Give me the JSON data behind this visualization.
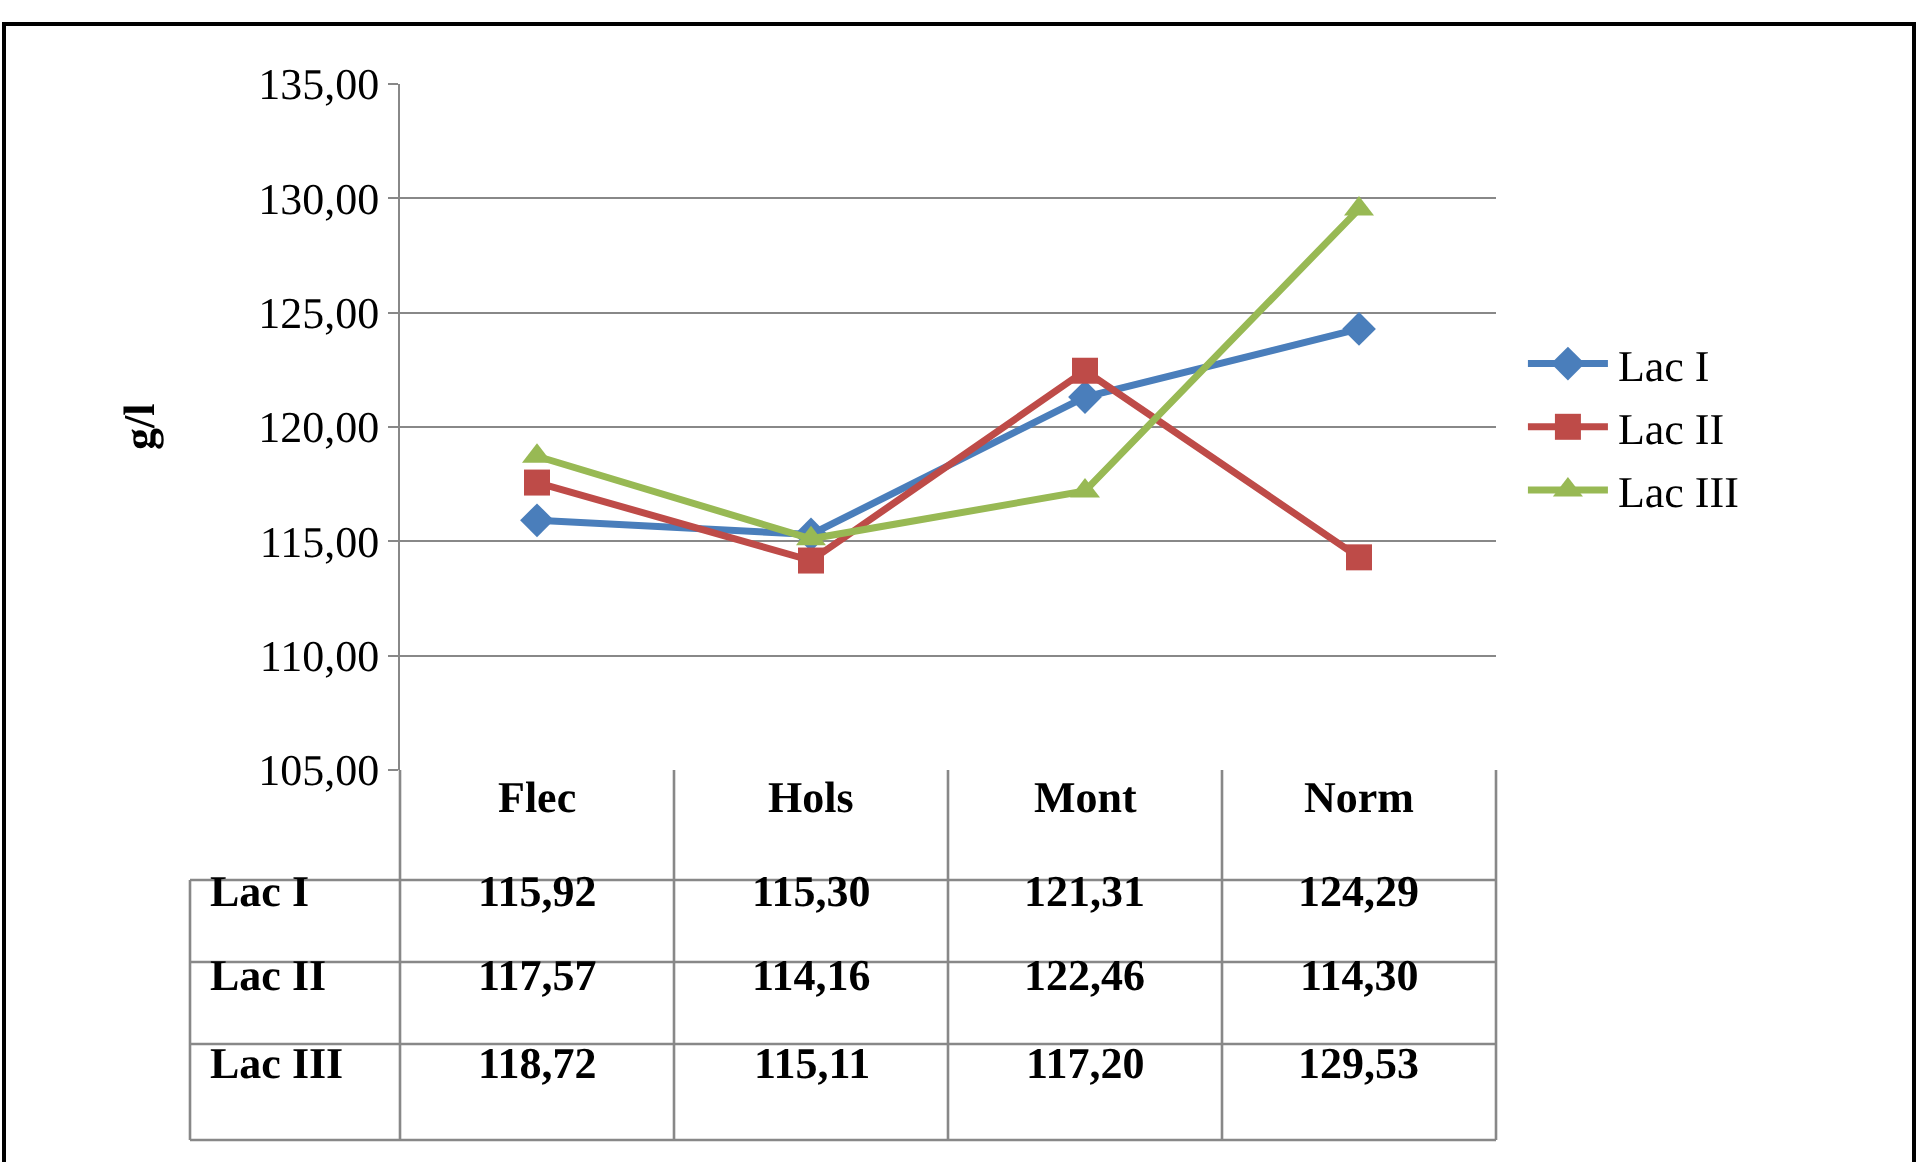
{
  "chart_data": {
    "type": "line",
    "ylabel": "g/l",
    "categories": [
      "Flec",
      "Hols",
      "Mont",
      "Norm"
    ],
    "series": [
      {
        "name": "Lac I",
        "color": "#4a7ebb",
        "marker": "diamond",
        "values": [
          115.92,
          115.3,
          121.31,
          124.29
        ],
        "value_labels": [
          "115,92",
          "115,30",
          "121,31",
          "124,29"
        ]
      },
      {
        "name": "Lac II",
        "color": "#be4b48",
        "marker": "square",
        "values": [
          117.57,
          114.16,
          122.46,
          114.3
        ],
        "value_labels": [
          "117,57",
          "114,16",
          "122,46",
          "114,30"
        ]
      },
      {
        "name": "Lac III",
        "color": "#98b954",
        "marker": "triangle",
        "values": [
          118.72,
          115.11,
          117.2,
          129.53
        ],
        "value_labels": [
          "118,72",
          "115,11",
          "117,20",
          "129,53"
        ]
      }
    ],
    "ylim": [
      105,
      135
    ],
    "yticks": [
      {
        "value": 105,
        "label": "105,00"
      },
      {
        "value": 110,
        "label": "110,00"
      },
      {
        "value": 115,
        "label": "115,00"
      },
      {
        "value": 120,
        "label": "120,00"
      },
      {
        "value": 125,
        "label": "125,00"
      },
      {
        "value": 130,
        "label": "130,00"
      },
      {
        "value": 135,
        "label": "135,00"
      }
    ],
    "grid": "y",
    "legend": "right",
    "line_style": "solid"
  }
}
